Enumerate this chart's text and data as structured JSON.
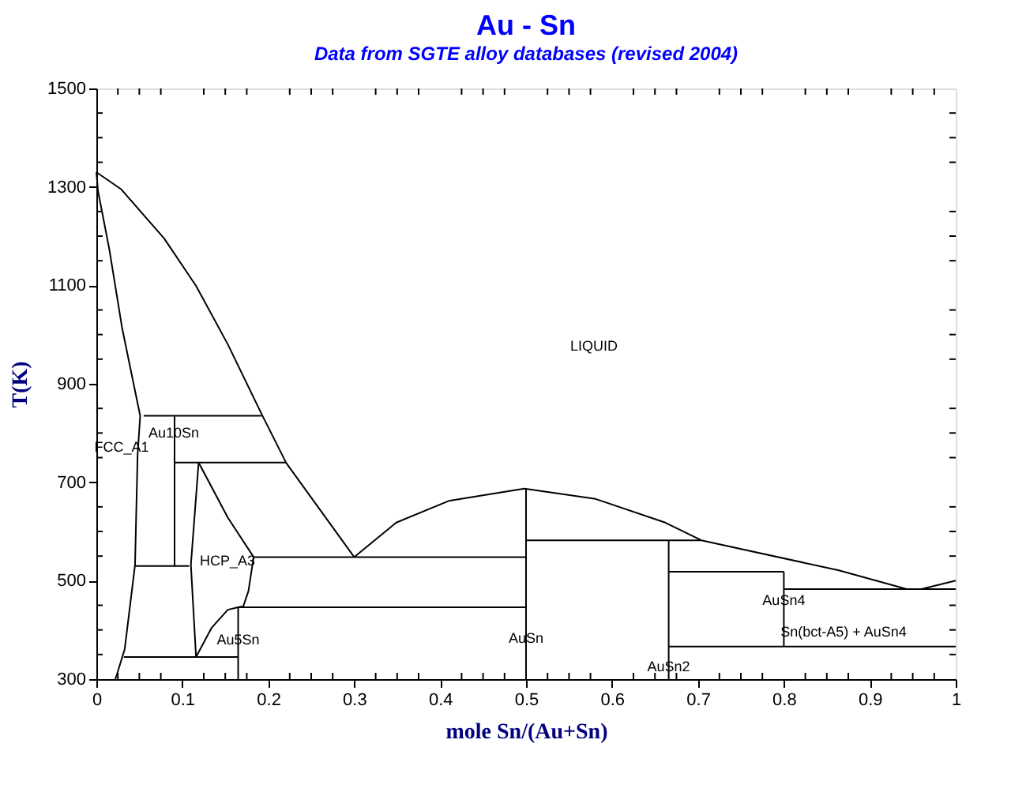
{
  "chart_data": {
    "type": "line",
    "title": "Au - Sn",
    "subtitle": "Data from SGTE alloy databases (revised 2004)",
    "xlabel": "mole Sn/(Au+Sn)",
    "ylabel": "T(K)",
    "xlim": [
      0,
      1
    ],
    "ylim": [
      300,
      1500
    ],
    "xticks": [
      0,
      {
        "value": 0.025,
        "label": null
      },
      {
        "value": 0.05,
        "label": null
      },
      {
        "value": 0.075,
        "label": null
      },
      0.1,
      {
        "value": 0.125,
        "label": null
      },
      {
        "value": 0.15,
        "label": null
      },
      {
        "value": 0.175,
        "label": null
      },
      0.2,
      {
        "value": 0.225,
        "label": null
      },
      {
        "value": 0.25,
        "label": null
      },
      {
        "value": 0.275,
        "label": null
      },
      0.3,
      {
        "value": 0.325,
        "label": null
      },
      {
        "value": 0.35,
        "label": null
      },
      {
        "value": 0.375,
        "label": null
      },
      0.4,
      {
        "value": 0.425,
        "label": null
      },
      {
        "value": 0.45,
        "label": null
      },
      {
        "value": 0.475,
        "label": null
      },
      0.5,
      {
        "value": 0.525,
        "label": null
      },
      {
        "value": 0.55,
        "label": null
      },
      {
        "value": 0.575,
        "label": null
      },
      0.6,
      {
        "value": 0.625,
        "label": null
      },
      {
        "value": 0.65,
        "label": null
      },
      {
        "value": 0.675,
        "label": null
      },
      0.7,
      {
        "value": 0.725,
        "label": null
      },
      {
        "value": 0.75,
        "label": null
      },
      {
        "value": 0.775,
        "label": null
      },
      0.8,
      {
        "value": 0.825,
        "label": null
      },
      {
        "value": 0.85,
        "label": null
      },
      {
        "value": 0.875,
        "label": null
      },
      0.9,
      {
        "value": 0.925,
        "label": null
      },
      {
        "value": 0.95,
        "label": null
      },
      {
        "value": 0.975,
        "label": null
      },
      1
    ],
    "yticks": [
      300,
      {
        "value": 350,
        "label": null
      },
      {
        "value": 400,
        "label": null
      },
      {
        "value": 450,
        "label": null
      },
      500,
      {
        "value": 550,
        "label": null
      },
      {
        "value": 600,
        "label": null
      },
      {
        "value": 650,
        "label": null
      },
      700,
      {
        "value": 750,
        "label": null
      },
      {
        "value": 800,
        "label": null
      },
      {
        "value": 850,
        "label": null
      },
      900,
      {
        "value": 950,
        "label": null
      },
      {
        "value": 1000,
        "label": null
      },
      {
        "value": 1050,
        "label": null
      },
      1100,
      {
        "value": 1150,
        "label": null
      },
      {
        "value": 1200,
        "label": null
      },
      {
        "value": 1250,
        "label": null
      },
      1300,
      {
        "value": 1350,
        "label": null
      },
      {
        "value": 1400,
        "label": null
      },
      {
        "value": 1450,
        "label": null
      },
      1500
    ],
    "grid": false,
    "legend": false,
    "marker": "none",
    "line_style": "solid",
    "series": [
      {
        "color": "#000000",
        "x": [
          0,
          0.029,
          0.079,
          0.116,
          0.153,
          0.193,
          0.221,
          0.3
        ],
        "values": [
          1330,
          1295,
          1195,
          1099,
          980,
          836,
          739,
          548
        ]
      },
      {
        "color": "#000000",
        "x": [
          0.3,
          0.349,
          0.41,
          0.498,
          0.581,
          0.662,
          0.704,
          0.864,
          0.943,
          0.96,
          1.0
        ],
        "values": [
          548,
          618,
          662,
          687,
          666,
          618,
          582,
          521,
          483,
          483,
          500
        ]
      },
      {
        "color": "#000000",
        "x": [
          0,
          0.002,
          0.015,
          0.03,
          0.051,
          0.048,
          0.045,
          0.033,
          0.024,
          0.022
        ],
        "values": [
          1330,
          1291,
          1174,
          1013,
          835,
          756,
          532,
          361,
          310,
          300
        ]
      },
      {
        "color": "#000000",
        "x": [
          0.055,
          0.192
        ],
        "values": [
          835,
          835
        ]
      },
      {
        "color": "#000000",
        "x": [
          0.091,
          0.091
        ],
        "values": [
          835,
          530
        ]
      },
      {
        "color": "#000000",
        "x": [
          0.091,
          0.221
        ],
        "values": [
          740,
          740
        ]
      },
      {
        "color": "#000000",
        "x": [
          0.045,
          0.108
        ],
        "values": [
          530,
          530
        ]
      },
      {
        "color": "#000000",
        "x": [
          0.116,
          0.11,
          0.119,
          0.153,
          0.183,
          0.177,
          0.171,
          0.165
        ],
        "values": [
          345,
          532,
          740,
          628,
          548,
          479,
          448,
          446
        ]
      },
      {
        "color": "#000000",
        "x": [
          0.183,
          0.5
        ],
        "values": [
          548,
          548
        ]
      },
      {
        "color": "#000000",
        "x": [
          0.116,
          0.134,
          0.153,
          0.165,
          0.5
        ],
        "values": [
          345,
          404,
          441,
          446,
          446
        ]
      },
      {
        "color": "#000000",
        "x": [
          0.032,
          0.165
        ],
        "values": [
          345,
          345
        ]
      },
      {
        "color": "#000000",
        "x": [
          0.165,
          0.165
        ],
        "values": [
          446,
          300
        ]
      },
      {
        "color": "#000000",
        "x": [
          0.5,
          0.5
        ],
        "values": [
          687,
          300
        ]
      },
      {
        "color": "#000000",
        "x": [
          0.5,
          0.704
        ],
        "values": [
          582,
          582
        ]
      },
      {
        "color": "#000000",
        "x": [
          0.666,
          0.666
        ],
        "values": [
          582,
          300
        ]
      },
      {
        "color": "#000000",
        "x": [
          0.666,
          0.8
        ],
        "values": [
          518,
          518
        ]
      },
      {
        "color": "#000000",
        "x": [
          0.8,
          0.8
        ],
        "values": [
          518,
          366
        ]
      },
      {
        "color": "#000000",
        "x": [
          0.8,
          1.0
        ],
        "values": [
          483,
          483
        ]
      },
      {
        "color": "#000000",
        "x": [
          0.666,
          1.0
        ],
        "values": [
          366,
          366
        ]
      }
    ],
    "annotations": [
      "LIQUID",
      "FCC_A1",
      {
        "text": "Au10Sn",
        "x": 0.09,
        "y": 800
      },
      "HCP_A3",
      {
        "text": "Au5Sn",
        "x": 0.165,
        "y": 380
      },
      "AuSn",
      {
        "text": "AuSn2",
        "x": 0.666,
        "y": 325
      },
      {
        "text": "AuSn4",
        "x": 0.8,
        "y": 460
      },
      "Sn(bct-A5) + AuSn4"
    ]
  }
}
